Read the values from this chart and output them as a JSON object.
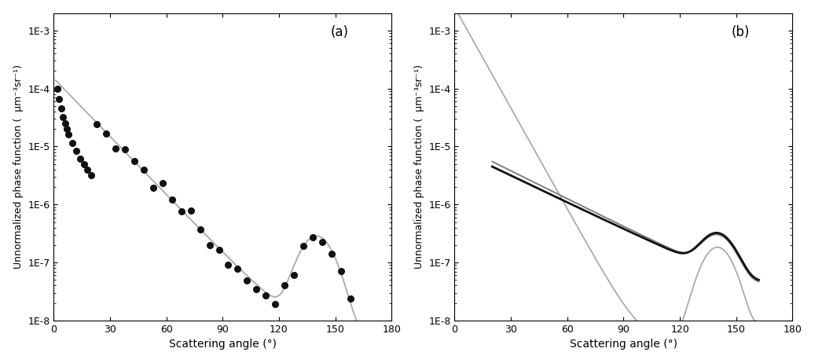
{
  "ylabel": "Unnormalized phase function (  μm⁻³sr⁻¹)",
  "xlabel": "Scattering angle (°)",
  "bg_color": "#ffffff",
  "gray_curve_color": "#aaaaaa",
  "black_dot_color": "#111111",
  "black_line_color": "#111111",
  "panel_a_label": "(a)",
  "panel_b_label": "(b)"
}
